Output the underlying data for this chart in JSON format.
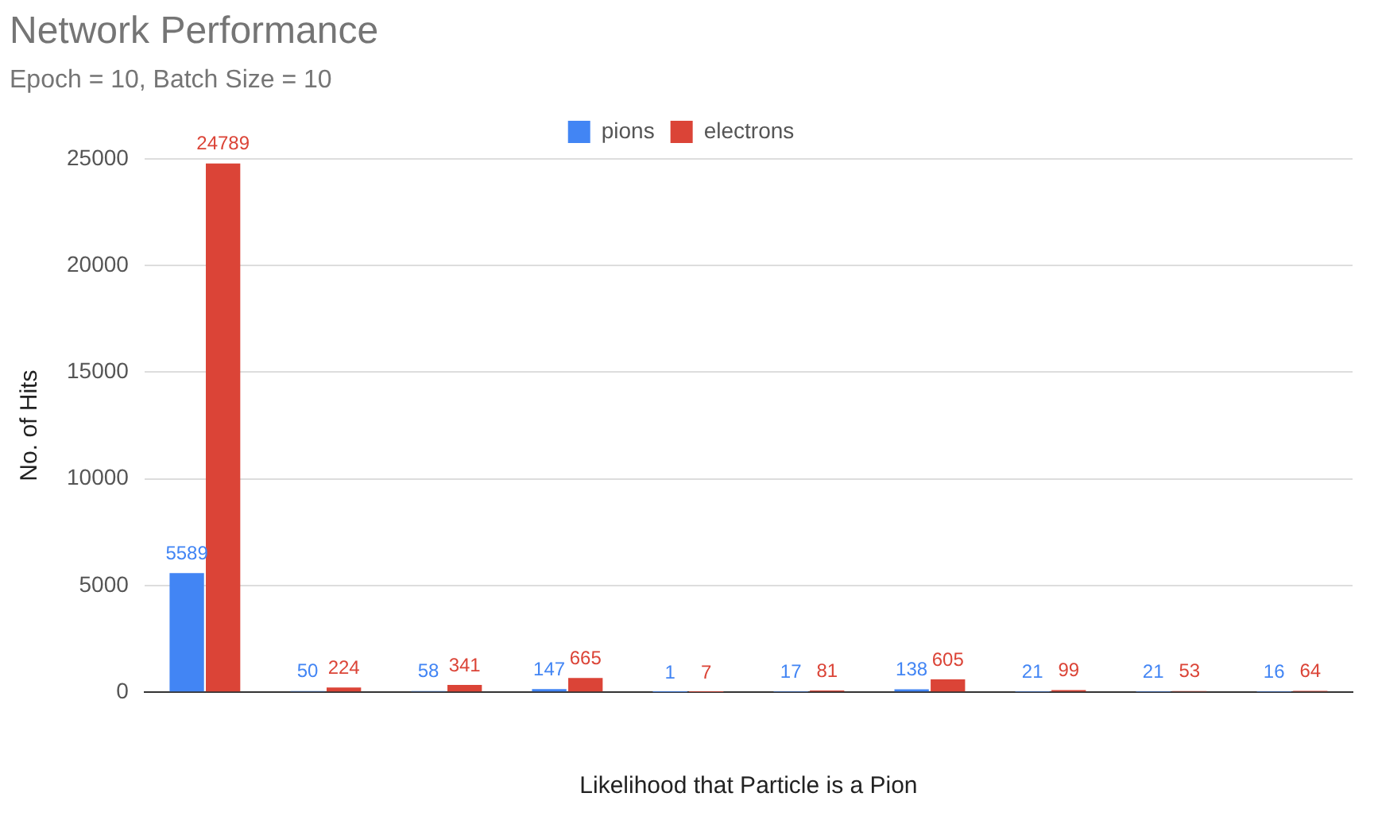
{
  "chart_data": {
    "type": "bar",
    "title": "Network Performance",
    "subtitle": "Epoch = 10, Batch Size = 10",
    "xlabel": "Likelihood that Particle is a Pion",
    "ylabel": "No. of Hits",
    "categories": [
      null,
      null,
      null,
      null,
      null,
      null,
      null,
      null,
      null,
      null
    ],
    "series": [
      {
        "name": "pions",
        "color": "#4285f4",
        "values": [
          5589,
          50,
          58,
          147,
          1,
          17,
          138,
          21,
          21,
          16
        ]
      },
      {
        "name": "electrons",
        "color": "#db4437",
        "values": [
          24789,
          224,
          341,
          665,
          7,
          81,
          605,
          99,
          53,
          64
        ]
      }
    ],
    "ylim": [
      0,
      25000
    ],
    "yticks": [
      0,
      5000,
      10000,
      15000,
      20000,
      25000
    ],
    "grid": "y",
    "legend": "top",
    "data_labels": true
  }
}
